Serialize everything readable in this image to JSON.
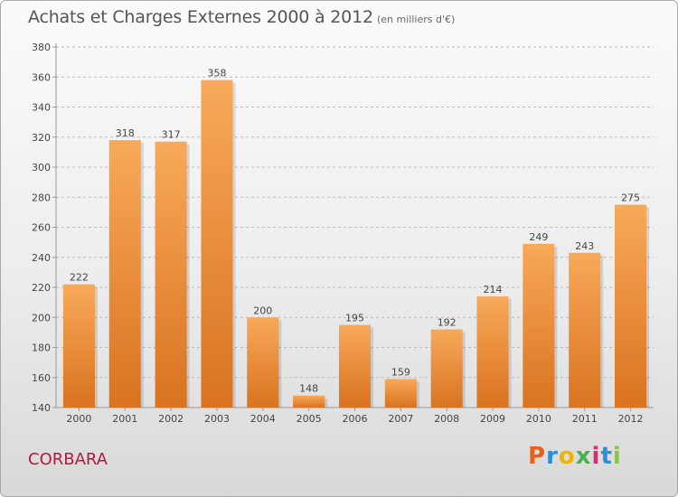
{
  "colors": {
    "bar_top": "#f8a95a",
    "bar_bottom": "#d9731f",
    "axis": "#999999",
    "grid": "#bbbbbb",
    "commune": "#b8183c"
  },
  "header": {
    "title": "Achats et Charges Externes 2000 à 2012",
    "unit": "(en milliers d'€)"
  },
  "footer": {
    "commune": "CORBARA",
    "logo_text": "Proxiti"
  },
  "chart_data": {
    "type": "bar",
    "title": "Achats et Charges Externes 2000 à 2012",
    "subtitle": "(en milliers d'€)",
    "xlabel": "",
    "ylabel": "",
    "categories": [
      "2000",
      "2001",
      "2002",
      "2003",
      "2004",
      "2005",
      "2006",
      "2007",
      "2008",
      "2009",
      "2010",
      "2011",
      "2012"
    ],
    "values": [
      222,
      318,
      317,
      358,
      200,
      148,
      195,
      159,
      192,
      214,
      249,
      243,
      275
    ],
    "ylim": [
      140,
      380
    ],
    "yticks": [
      140,
      160,
      180,
      200,
      220,
      240,
      260,
      280,
      300,
      320,
      340,
      360,
      380
    ],
    "grid": "horizontal-dashed",
    "data_labels": true
  }
}
